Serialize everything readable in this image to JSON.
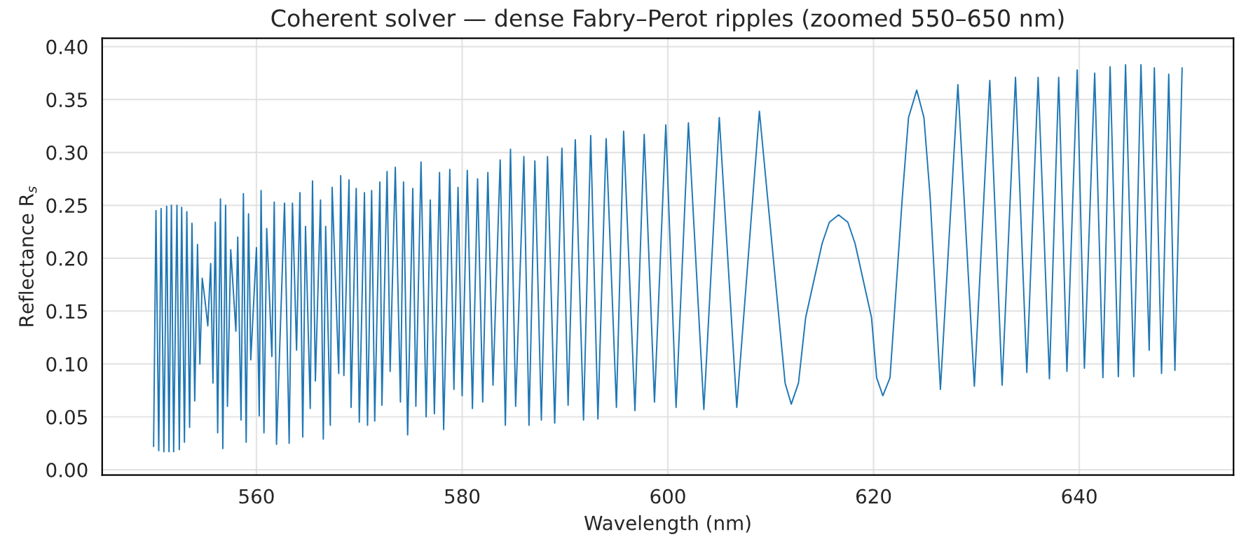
{
  "chart_data": {
    "type": "line",
    "title": "Coherent solver — dense Fabry–Perot ripples (zoomed 550–650 nm)",
    "xlabel": "Wavelength (nm)",
    "ylabel": "Reflectance R$_{s}$",
    "xlim": [
      545,
      655
    ],
    "ylim": [
      -0.005,
      0.408
    ],
    "xticks": [
      560,
      580,
      600,
      620,
      640
    ],
    "yticks": [
      {
        "value": 0,
        "label": "0.00"
      },
      {
        "value": 0.05,
        "label": "0.05"
      },
      {
        "value": 0.1,
        "label": "0.10"
      },
      {
        "value": 0.15,
        "label": "0.15"
      },
      {
        "value": 0.2,
        "label": "0.20"
      },
      {
        "value": 0.25,
        "label": "0.25"
      },
      {
        "value": 0.3,
        "label": "0.30"
      },
      {
        "value": 0.35,
        "label": "0.35"
      },
      {
        "value": 0.4,
        "label": "0.40"
      }
    ],
    "grid": true,
    "marker": "none",
    "line_style": "solid",
    "series": [
      {
        "color": "#1f77b4",
        "x": [
          550.0,
          550.23,
          550.5,
          550.73,
          551.0,
          551.27,
          551.5,
          551.73,
          551.95,
          552.27,
          552.5,
          552.73,
          553.0,
          553.23,
          553.5,
          553.73,
          554.0,
          554.27,
          554.5,
          554.73,
          555.0,
          555.27,
          555.55,
          555.77,
          556.0,
          556.23,
          556.5,
          556.73,
          557.0,
          557.18,
          557.5,
          558.0,
          558.18,
          558.5,
          558.73,
          559.0,
          559.23,
          559.45,
          560.0,
          560.27,
          560.45,
          560.73,
          561.0,
          561.5,
          561.73,
          561.95,
          562.73,
          563.18,
          563.5,
          563.9,
          564.23,
          564.5,
          564.77,
          565.23,
          565.45,
          565.73,
          566.23,
          566.5,
          566.73,
          567.18,
          567.36,
          568.0,
          568.19,
          568.5,
          569.0,
          569.2,
          569.7,
          570.0,
          570.5,
          570.8,
          571.2,
          571.5,
          572.0,
          572.2,
          572.7,
          573.0,
          573.5,
          574.0,
          574.3,
          574.7,
          575.2,
          575.5,
          576.0,
          576.5,
          576.9,
          577.3,
          577.8,
          578.2,
          578.8,
          579.2,
          579.6,
          580.0,
          580.5,
          581.0,
          581.5,
          582.0,
          582.5,
          583.0,
          583.7,
          584.2,
          584.7,
          585.2,
          586.0,
          586.5,
          587.07,
          587.7,
          588.3,
          589.0,
          589.7,
          590.3,
          591.0,
          591.8,
          592.5,
          593.2,
          594.0,
          595.0,
          595.7,
          596.8,
          597.7,
          598.7,
          599.8,
          600.8,
          602.0,
          603.5,
          605.0,
          606.7,
          608.9,
          611.4,
          612.0,
          612.7,
          613.4,
          615.0,
          615.7,
          616.6,
          617.5,
          618.2,
          619.8,
          620.3,
          620.9,
          621.6,
          622.8,
          623.4,
          624.2,
          624.9,
          625.5,
          626.5,
          628.2,
          629.8,
          631.3,
          632.5,
          633.8,
          634.9,
          636.0,
          637.1,
          638.0,
          638.8,
          639.8,
          640.5,
          641.5,
          642.3,
          643.0,
          643.8,
          644.5,
          645.3,
          646.0,
          646.8,
          647.3,
          648.0,
          648.7,
          649.3,
          650.0
        ],
        "values": [
          0.022,
          0.245,
          0.018,
          0.247,
          0.017,
          0.249,
          0.017,
          0.25,
          0.017,
          0.25,
          0.019,
          0.248,
          0.026,
          0.244,
          0.04,
          0.233,
          0.065,
          0.213,
          0.1,
          0.181,
          0.16,
          0.136,
          0.195,
          0.082,
          0.234,
          0.035,
          0.256,
          0.02,
          0.25,
          0.06,
          0.208,
          0.131,
          0.22,
          0.047,
          0.261,
          0.026,
          0.242,
          0.104,
          0.21,
          0.051,
          0.264,
          0.035,
          0.228,
          0.107,
          0.253,
          0.024,
          0.252,
          0.025,
          0.252,
          0.113,
          0.262,
          0.031,
          0.23,
          0.058,
          0.273,
          0.084,
          0.255,
          0.029,
          0.23,
          0.042,
          0.267,
          0.091,
          0.278,
          0.089,
          0.274,
          0.059,
          0.266,
          0.045,
          0.262,
          0.042,
          0.264,
          0.046,
          0.272,
          0.061,
          0.282,
          0.093,
          0.286,
          0.064,
          0.272,
          0.033,
          0.266,
          0.06,
          0.291,
          0.05,
          0.255,
          0.053,
          0.281,
          0.038,
          0.284,
          0.076,
          0.267,
          0.07,
          0.283,
          0.058,
          0.275,
          0.064,
          0.281,
          0.08,
          0.293,
          0.042,
          0.303,
          0.06,
          0.296,
          0.042,
          0.292,
          0.047,
          0.296,
          0.044,
          0.304,
          0.061,
          0.312,
          0.047,
          0.316,
          0.048,
          0.313,
          0.059,
          0.32,
          0.056,
          0.317,
          0.064,
          0.326,
          0.059,
          0.328,
          0.057,
          0.333,
          0.059,
          0.339,
          0.082,
          0.062,
          0.082,
          0.144,
          0.214,
          0.234,
          0.241,
          0.234,
          0.214,
          0.144,
          0.087,
          0.07,
          0.087,
          0.258,
          0.333,
          0.359,
          0.333,
          0.258,
          0.076,
          0.364,
          0.079,
          0.368,
          0.08,
          0.371,
          0.092,
          0.371,
          0.086,
          0.371,
          0.093,
          0.378,
          0.096,
          0.375,
          0.087,
          0.381,
          0.088,
          0.383,
          0.088,
          0.383,
          0.113,
          0.38,
          0.091,
          0.374,
          0.094,
          0.38
        ]
      }
    ]
  }
}
